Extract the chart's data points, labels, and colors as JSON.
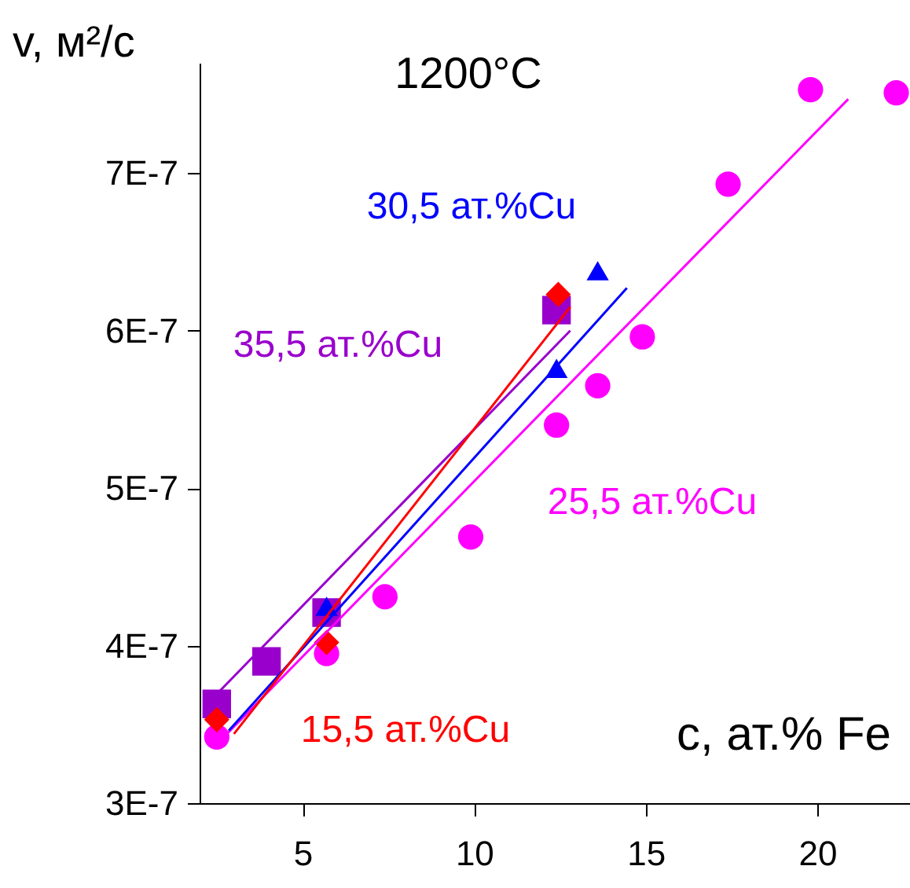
{
  "chart_data": {
    "type": "scatter",
    "title": "1200°C",
    "xlabel": "с, ат.% Fe",
    "ylabel": "v, м²/с",
    "xlim": [
      2,
      22.7
    ],
    "xticks": [
      5,
      10,
      15,
      20
    ],
    "ylim": [
      3e-07,
      7.7e-07
    ],
    "yticks": [
      {
        "value": 3e-07,
        "label": "3E-7"
      },
      {
        "value": 4e-07,
        "label": "4E-7"
      },
      {
        "value": 5e-07,
        "label": "5E-7"
      },
      {
        "value": 6e-07,
        "label": "6E-7"
      },
      {
        "value": 7e-07,
        "label": "7E-7"
      }
    ],
    "grid": false,
    "series": [
      {
        "name": "25,5 ат.%Cu",
        "marker": "circle",
        "color": "#ff00ff",
        "x": [
          2.5,
          5.7,
          7.4,
          9.9,
          12.4,
          13.6,
          14.9,
          17.4,
          19.8,
          22.3
        ],
        "values": [
          3.42e-07,
          3.95e-07,
          4.31e-07,
          4.69e-07,
          5.4e-07,
          5.65e-07,
          5.96e-07,
          6.93e-07,
          7.53e-07,
          7.51e-07
        ]
      },
      {
        "name": "35,5 ат.%Cu",
        "marker": "square",
        "color": "#9900cc",
        "x": [
          2.5,
          3.95,
          5.7,
          12.4
        ],
        "values": [
          3.63e-07,
          3.9e-07,
          4.21e-07,
          6.13e-07
        ]
      },
      {
        "name": "30,5 ат.%Cu",
        "marker": "triangle",
        "color": "#0000ff",
        "x": [
          5.7,
          12.4,
          13.6
        ],
        "values": [
          4.25e-07,
          5.76e-07,
          6.38e-07
        ]
      },
      {
        "name": "15,5 ат.%Cu",
        "marker": "diamond",
        "color": "#ff0000",
        "x": [
          2.5,
          5.7,
          12.45
        ],
        "values": [
          3.53e-07,
          4.02e-07,
          6.23e-07
        ]
      },
      {
        "type": "line",
        "marker": "none",
        "line_style": "solid",
        "color": "#ff00ff",
        "x": [
          2.8,
          20.9
        ],
        "values": [
          3.44e-07,
          7.47e-07
        ]
      },
      {
        "type": "line",
        "marker": "none",
        "line_style": "solid",
        "color": "#0000ff",
        "x": [
          2.85,
          14.45
        ],
        "values": [
          3.46e-07,
          6.27e-07
        ]
      },
      {
        "type": "line",
        "marker": "none",
        "line_style": "solid",
        "color": "#9900cc",
        "x": [
          2.4,
          12.8
        ],
        "values": [
          3.67e-07,
          6e-07
        ]
      },
      {
        "type": "line",
        "marker": "none",
        "line_style": "solid",
        "color": "#ff0000",
        "x": [
          3.0,
          12.8
        ],
        "values": [
          3.44e-07,
          6.15e-07
        ]
      }
    ]
  }
}
